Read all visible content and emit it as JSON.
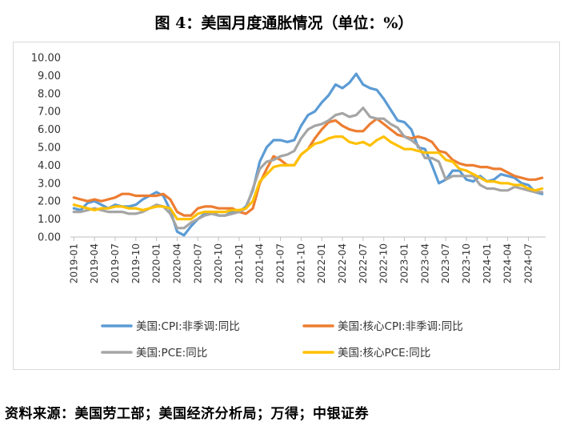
{
  "title": "图 4：美国月度通胀情况（单位：%）",
  "source": "资料来源：美国劳工部；美国经济分析局；万得；中银证券",
  "chart_data": {
    "type": "line",
    "title": "图 4：美国月度通胀情况（单位：%）",
    "xlabel": "",
    "ylabel": "",
    "ylim": [
      0,
      10
    ],
    "yticks": [
      "0.00",
      "1.00",
      "2.00",
      "3.00",
      "4.00",
      "5.00",
      "6.00",
      "7.00",
      "8.00",
      "9.00",
      "10.00"
    ],
    "x_tick_labels": [
      "2019-01",
      "2019-04",
      "2019-07",
      "2019-10",
      "2020-01",
      "2020-04",
      "2020-07",
      "2020-10",
      "2021-01",
      "2021-04",
      "2021-07",
      "2021-10",
      "2022-01",
      "2022-04",
      "2022-07",
      "2022-10",
      "2023-01",
      "2023-04",
      "2023-07",
      "2023-10",
      "2024-01",
      "2024-04",
      "2024-07"
    ],
    "x_start": "2019-01",
    "x_end": "2024-09",
    "grid": false,
    "legend_position": "bottom",
    "series": [
      {
        "name": "美国:CPI:非季调:同比",
        "color": "#5b9bd5",
        "values": [
          1.6,
          1.5,
          1.9,
          2.0,
          1.8,
          1.6,
          1.8,
          1.7,
          1.7,
          1.8,
          2.1,
          2.3,
          2.5,
          2.3,
          1.5,
          0.3,
          0.1,
          0.6,
          1.0,
          1.3,
          1.4,
          1.2,
          1.2,
          1.4,
          1.4,
          1.7,
          2.6,
          4.2,
          5.0,
          5.4,
          5.4,
          5.3,
          5.4,
          6.2,
          6.8,
          7.0,
          7.5,
          7.9,
          8.5,
          8.3,
          8.6,
          9.1,
          8.5,
          8.3,
          8.2,
          7.7,
          7.1,
          6.5,
          6.4,
          6.0,
          5.0,
          4.9,
          4.0,
          3.0,
          3.2,
          3.7,
          3.7,
          3.2,
          3.1,
          3.4,
          3.1,
          3.2,
          3.5,
          3.4,
          3.3,
          3.0,
          2.9,
          2.5,
          2.4
        ]
      },
      {
        "name": "美国:核心CPI:非季调:同比",
        "color": "#ed7d31",
        "values": [
          2.2,
          2.1,
          2.0,
          2.1,
          2.0,
          2.1,
          2.2,
          2.4,
          2.4,
          2.3,
          2.3,
          2.3,
          2.3,
          2.4,
          2.1,
          1.4,
          1.2,
          1.2,
          1.6,
          1.7,
          1.7,
          1.6,
          1.6,
          1.6,
          1.4,
          1.3,
          1.6,
          3.0,
          3.8,
          4.5,
          4.3,
          4.0,
          4.0,
          4.6,
          4.9,
          5.5,
          6.0,
          6.4,
          6.5,
          6.2,
          6.0,
          5.9,
          5.9,
          6.3,
          6.6,
          6.3,
          6.0,
          5.7,
          5.6,
          5.5,
          5.6,
          5.5,
          5.3,
          4.8,
          4.7,
          4.3,
          4.1,
          4.0,
          4.0,
          3.9,
          3.9,
          3.8,
          3.8,
          3.6,
          3.4,
          3.3,
          3.2,
          3.2,
          3.3
        ]
      },
      {
        "name": "美国:PCE:同比",
        "color": "#a5a5a5",
        "values": [
          1.4,
          1.4,
          1.5,
          1.6,
          1.5,
          1.4,
          1.4,
          1.4,
          1.3,
          1.3,
          1.4,
          1.6,
          1.8,
          1.7,
          1.3,
          0.5,
          0.5,
          0.8,
          1.0,
          1.2,
          1.3,
          1.2,
          1.2,
          1.3,
          1.4,
          1.6,
          2.7,
          3.8,
          4.2,
          4.3,
          4.5,
          4.6,
          4.8,
          5.5,
          6.0,
          6.2,
          6.3,
          6.5,
          6.8,
          6.9,
          6.7,
          6.8,
          7.2,
          6.7,
          6.6,
          6.6,
          6.3,
          6.1,
          5.6,
          5.4,
          5.1,
          4.4,
          4.4,
          4.2,
          3.2,
          3.4,
          3.4,
          3.4,
          3.4,
          2.9,
          2.7,
          2.7,
          2.6,
          2.6,
          2.8,
          2.7,
          2.6,
          2.5,
          2.5
        ]
      },
      {
        "name": "美国:核心PCE:同比",
        "color": "#ffc000",
        "values": [
          1.8,
          1.7,
          1.6,
          1.5,
          1.6,
          1.6,
          1.7,
          1.7,
          1.6,
          1.6,
          1.5,
          1.6,
          1.7,
          1.7,
          1.6,
          1.0,
          1.0,
          1.0,
          1.3,
          1.4,
          1.4,
          1.4,
          1.4,
          1.5,
          1.5,
          1.6,
          2.0,
          3.1,
          3.5,
          3.9,
          4.0,
          4.0,
          4.0,
          4.6,
          4.9,
          5.2,
          5.3,
          5.5,
          5.6,
          5.6,
          5.3,
          5.2,
          5.3,
          5.1,
          5.4,
          5.6,
          5.3,
          5.1,
          4.9,
          4.9,
          4.8,
          4.7,
          4.7,
          4.7,
          4.3,
          4.2,
          3.8,
          3.7,
          3.5,
          3.3,
          3.1,
          3.1,
          3.0,
          3.0,
          2.9,
          2.9,
          2.7,
          2.6,
          2.7
        ]
      }
    ]
  }
}
